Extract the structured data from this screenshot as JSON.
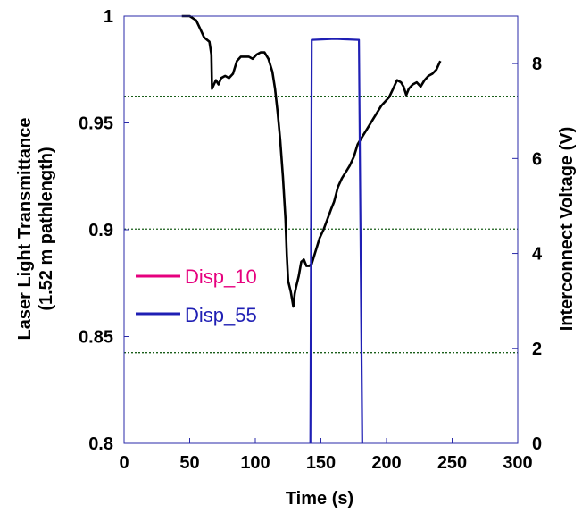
{
  "chart_data": {
    "type": "line",
    "x": {
      "label": "Time (s)",
      "range": [
        0,
        300
      ],
      "ticks": [
        0,
        50,
        100,
        150,
        200,
        250,
        300
      ]
    },
    "y_left": {
      "label_line1": "Laser Light Transmittance",
      "label_line2": "(1.52 m pathlength)",
      "range": [
        0.8,
        1.0
      ],
      "ticks": [
        0.8,
        0.85,
        0.9,
        0.95,
        1.0
      ],
      "tick_labels": [
        "0.8",
        "0.85",
        "0.9",
        "0.95",
        "1"
      ]
    },
    "y_right": {
      "label": "Interconnect Voltage (V)",
      "range": [
        0,
        9
      ],
      "ticks": [
        0,
        2,
        4,
        6,
        8
      ],
      "tick_labels": [
        "0",
        "2",
        "4",
        "6",
        "8"
      ]
    },
    "gridlines_left_axis": [
      0.8424,
      0.9003,
      0.9625
    ],
    "legend": {
      "placement": "left-middle",
      "entries": [
        {
          "name": "Disp_10",
          "color": "#e6007e"
        },
        {
          "name": "Disp_55",
          "color": "#1f1fb4"
        }
      ]
    },
    "series": [
      {
        "name": "transmittance",
        "axis": "left",
        "color": "#000000",
        "points": [
          [
            44,
            1.0
          ],
          [
            50,
            1.0
          ],
          [
            55,
            0.998
          ],
          [
            58,
            0.994
          ],
          [
            61,
            0.99
          ],
          [
            63,
            0.989
          ],
          [
            65,
            0.988
          ],
          [
            66.5,
            0.982
          ],
          [
            67,
            0.966
          ],
          [
            68.5,
            0.968
          ],
          [
            70,
            0.97
          ],
          [
            72,
            0.968
          ],
          [
            74,
            0.971
          ],
          [
            77,
            0.972
          ],
          [
            80,
            0.971
          ],
          [
            83,
            0.973
          ],
          [
            86,
            0.979
          ],
          [
            89,
            0.981
          ],
          [
            92,
            0.981
          ],
          [
            95,
            0.981
          ],
          [
            98,
            0.98
          ],
          [
            101,
            0.982
          ],
          [
            104,
            0.983
          ],
          [
            107,
            0.983
          ],
          [
            110,
            0.98
          ],
          [
            113,
            0.974
          ],
          [
            115,
            0.966
          ],
          [
            117,
            0.955
          ],
          [
            119,
            0.942
          ],
          [
            121,
            0.925
          ],
          [
            123,
            0.905
          ],
          [
            124,
            0.888
          ],
          [
            125,
            0.876
          ],
          [
            127,
            0.871
          ],
          [
            129,
            0.864
          ],
          [
            130,
            0.87
          ],
          [
            131,
            0.873
          ],
          [
            133,
            0.878
          ],
          [
            135,
            0.885
          ],
          [
            137,
            0.886
          ],
          [
            139,
            0.883
          ],
          [
            141,
            0.883
          ],
          [
            143,
            0.884
          ],
          [
            146,
            0.89
          ],
          [
            149,
            0.896
          ],
          [
            152,
            0.9
          ],
          [
            155,
            0.905
          ],
          [
            158,
            0.91
          ],
          [
            160,
            0.913
          ],
          [
            163,
            0.92
          ],
          [
            166,
            0.924
          ],
          [
            169,
            0.927
          ],
          [
            172,
            0.93
          ],
          [
            175,
            0.934
          ],
          [
            178,
            0.94
          ],
          [
            181,
            0.943
          ],
          [
            184,
            0.946
          ],
          [
            187,
            0.949
          ],
          [
            190,
            0.952
          ],
          [
            193,
            0.955
          ],
          [
            196,
            0.958
          ],
          [
            199,
            0.96
          ],
          [
            202,
            0.962
          ],
          [
            205,
            0.966
          ],
          [
            208,
            0.97
          ],
          [
            211,
            0.969
          ],
          [
            213,
            0.967
          ],
          [
            215,
            0.963
          ],
          [
            217,
            0.966
          ],
          [
            220,
            0.968
          ],
          [
            223,
            0.969
          ],
          [
            226,
            0.967
          ],
          [
            229,
            0.97
          ],
          [
            232,
            0.972
          ],
          [
            235,
            0.973
          ],
          [
            238,
            0.975
          ],
          [
            241,
            0.979
          ]
        ]
      },
      {
        "name": "Disp_55",
        "axis": "right",
        "color": "#1f1fb4",
        "points": [
          [
            142,
            0.0
          ],
          [
            143,
            8.5
          ],
          [
            160,
            8.52
          ],
          [
            179,
            8.5
          ],
          [
            181.5,
            0.0
          ]
        ]
      }
    ]
  }
}
